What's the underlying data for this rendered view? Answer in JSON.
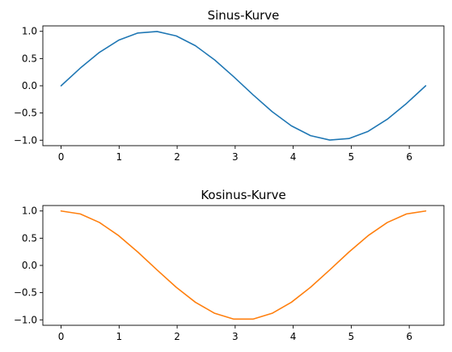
{
  "chart_data": [
    {
      "type": "line",
      "title": "Sinus-Kurve",
      "xlabel": "",
      "ylabel": "",
      "xlim": [
        -0.3142,
        6.5973
      ],
      "ylim": [
        -1.1,
        1.1
      ],
      "x_ticks": [
        0,
        1,
        2,
        3,
        4,
        5,
        6
      ],
      "x_tick_labels": [
        "0",
        "1",
        "2",
        "3",
        "4",
        "5",
        "6"
      ],
      "y_ticks": [
        1.0,
        0.5,
        0.0,
        -0.5,
        -1.0
      ],
      "y_tick_labels": [
        "1.0",
        "0.5",
        "0.0",
        "−0.5",
        "−1.0"
      ],
      "grid": false,
      "series": [
        {
          "color": "#1f77b4",
          "x": [
            0,
            0.3307,
            0.6614,
            0.9921,
            1.3228,
            1.6535,
            1.9842,
            2.3149,
            2.6456,
            2.9762,
            3.3069,
            3.6376,
            3.9683,
            4.299,
            4.6297,
            4.9604,
            5.2911,
            5.6218,
            5.9525,
            6.2832
          ],
          "y": [
            0,
            0.3247,
            0.6142,
            0.8372,
            0.9694,
            0.9966,
            0.9158,
            0.7357,
            0.4759,
            0.1646,
            -0.1646,
            -0.4759,
            -0.7357,
            -0.9158,
            -0.9966,
            -0.9694,
            -0.8372,
            -0.6142,
            -0.3247,
            0
          ]
        }
      ]
    },
    {
      "type": "line",
      "title": "Kosinus-Kurve",
      "xlabel": "",
      "ylabel": "",
      "xlim": [
        -0.3142,
        6.5973
      ],
      "ylim": [
        -1.1,
        1.1
      ],
      "x_ticks": [
        0,
        1,
        2,
        3,
        4,
        5,
        6
      ],
      "x_tick_labels": [
        "0",
        "1",
        "2",
        "3",
        "4",
        "5",
        "6"
      ],
      "y_ticks": [
        1.0,
        0.5,
        0.0,
        -0.5,
        -1.0
      ],
      "y_tick_labels": [
        "1.0",
        "0.5",
        "0.0",
        "−0.5",
        "−1.0"
      ],
      "grid": false,
      "series": [
        {
          "color": "#ff7f0e",
          "x": [
            0,
            0.3307,
            0.6614,
            0.9921,
            1.3228,
            1.6535,
            1.9842,
            2.3149,
            2.6456,
            2.9762,
            3.3069,
            3.6376,
            3.9683,
            4.299,
            4.6297,
            4.9604,
            5.2911,
            5.6218,
            5.9525,
            6.2832
          ],
          "y": [
            1,
            0.9458,
            0.7891,
            0.5469,
            0.2455,
            -0.0826,
            -0.4017,
            -0.6773,
            -0.8795,
            -0.9864,
            -0.9864,
            -0.8795,
            -0.6773,
            -0.4017,
            -0.0826,
            0.2455,
            0.5469,
            0.7891,
            0.9458,
            1
          ]
        }
      ]
    }
  ]
}
